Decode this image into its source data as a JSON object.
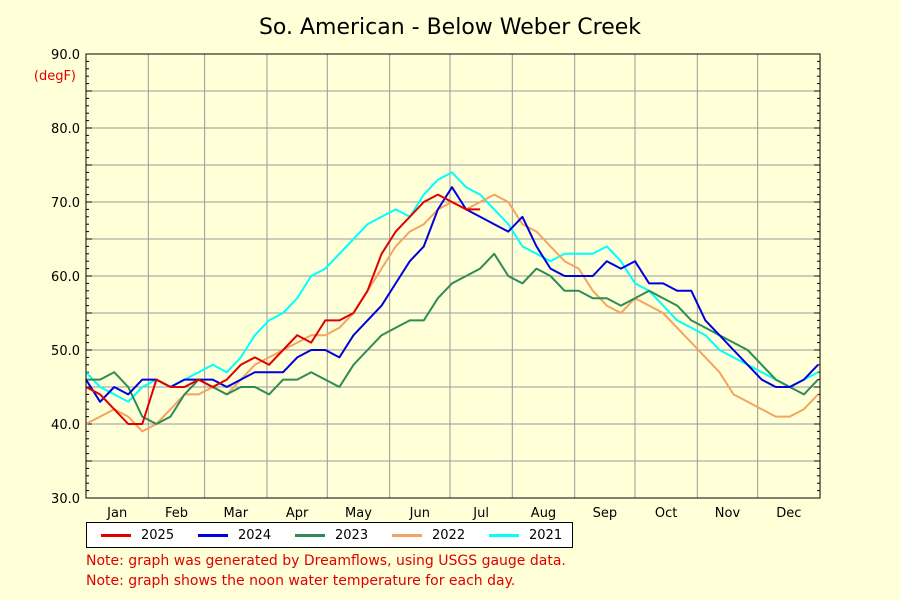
{
  "chart_data": {
    "type": "line",
    "title": "So. American - Below Weber Creek",
    "ylabel": "(degF)",
    "ylim": [
      30,
      90
    ],
    "yticks": [
      "90.0",
      "80.0",
      "70.0",
      "60.0",
      "50.0",
      "40.0",
      "30.0"
    ],
    "ytick_values": [
      90,
      80,
      70,
      60,
      50,
      40,
      30
    ],
    "x_range_days": [
      1,
      366
    ],
    "months": [
      "Jan",
      "Feb",
      "Mar",
      "Apr",
      "May",
      "Jun",
      "Jul",
      "Aug",
      "Sep",
      "Oct",
      "Nov",
      "Dec"
    ],
    "grid": true,
    "legend_position": "bottom",
    "series": [
      {
        "name": "2025",
        "color": "#e00000",
        "days": [
          1,
          8,
          15,
          22,
          29,
          36,
          43,
          50,
          57,
          64,
          71,
          78,
          85,
          92,
          99,
          106,
          113,
          120,
          127,
          134,
          141,
          148,
          155,
          162,
          169,
          176,
          183,
          190,
          197
        ],
        "values": [
          45,
          44,
          42,
          40,
          40,
          46,
          45,
          45,
          46,
          45,
          46,
          48,
          49,
          48,
          50,
          52,
          51,
          54,
          54,
          55,
          58,
          63,
          66,
          68,
          70,
          71,
          70,
          69,
          69
        ]
      },
      {
        "name": "2024",
        "color": "#0000e0",
        "days": [
          1,
          8,
          15,
          22,
          29,
          36,
          43,
          50,
          57,
          64,
          71,
          78,
          85,
          92,
          99,
          106,
          113,
          120,
          127,
          134,
          141,
          148,
          155,
          162,
          169,
          176,
          183,
          190,
          197,
          204,
          211,
          218,
          225,
          232,
          239,
          246,
          253,
          260,
          267,
          274,
          281,
          288,
          295,
          302,
          309,
          316,
          323,
          330,
          337,
          344,
          351,
          358,
          365
        ],
        "values": [
          46,
          43,
          45,
          44,
          46,
          46,
          45,
          46,
          46,
          46,
          45,
          46,
          47,
          47,
          47,
          49,
          50,
          50,
          49,
          52,
          54,
          56,
          59,
          62,
          64,
          69,
          72,
          69,
          68,
          67,
          66,
          68,
          64,
          61,
          60,
          60,
          60,
          62,
          61,
          62,
          59,
          59,
          58,
          58,
          54,
          52,
          50,
          48,
          46,
          45,
          45,
          46,
          48
        ]
      },
      {
        "name": "2023",
        "color": "#2e8b57",
        "days": [
          1,
          8,
          15,
          22,
          29,
          36,
          43,
          50,
          57,
          64,
          71,
          78,
          85,
          92,
          99,
          106,
          113,
          120,
          127,
          134,
          141,
          148,
          155,
          162,
          169,
          176,
          183,
          190,
          197,
          204,
          211,
          218,
          225,
          232,
          239,
          246,
          253,
          260,
          267,
          274,
          281,
          288,
          295,
          302,
          309,
          316,
          323,
          330,
          337,
          344,
          351,
          358,
          365
        ],
        "values": [
          46,
          46,
          47,
          45,
          41,
          40,
          41,
          44,
          46,
          45,
          44,
          45,
          45,
          44,
          46,
          46,
          47,
          46,
          45,
          48,
          50,
          52,
          53,
          54,
          54,
          57,
          59,
          60,
          61,
          63,
          60,
          59,
          61,
          60,
          58,
          58,
          57,
          57,
          56,
          57,
          58,
          57,
          56,
          54,
          53,
          52,
          51,
          50,
          48,
          46,
          45,
          44,
          46
        ]
      },
      {
        "name": "2022",
        "color": "#f4a460",
        "days": [
          1,
          8,
          15,
          22,
          29,
          36,
          43,
          50,
          57,
          64,
          71,
          78,
          85,
          92,
          99,
          106,
          113,
          120,
          127,
          134,
          141,
          148,
          155,
          162,
          169,
          176,
          183,
          190,
          197,
          204,
          211,
          218,
          225,
          232,
          239,
          246,
          253,
          260,
          267,
          274,
          281,
          288,
          295,
          302,
          309,
          316,
          323,
          330,
          337,
          344,
          351,
          358,
          365
        ],
        "values": [
          40,
          41,
          42,
          41,
          39,
          40,
          42,
          44,
          44,
          45,
          44,
          46,
          48,
          49,
          50,
          51,
          52,
          52,
          53,
          55,
          58,
          61,
          64,
          66,
          67,
          69,
          70,
          69,
          70,
          71,
          70,
          67,
          66,
          64,
          62,
          61,
          58,
          56,
          55,
          57,
          56,
          55,
          53,
          51,
          49,
          47,
          44,
          43,
          42,
          41,
          41,
          42,
          44
        ]
      },
      {
        "name": "2021",
        "color": "#00ffff",
        "days": [
          1,
          8,
          15,
          22,
          29,
          36,
          43,
          50,
          57,
          64,
          71,
          78,
          85,
          92,
          99,
          106,
          113,
          120,
          127,
          134,
          141,
          148,
          155,
          162,
          169,
          176,
          183,
          190,
          197,
          204,
          211,
          218,
          225,
          232,
          239,
          246,
          253,
          260,
          267,
          274,
          281,
          288,
          295,
          302,
          309,
          316,
          323,
          330,
          337,
          344,
          351,
          358,
          365
        ],
        "values": [
          47,
          45,
          44,
          43,
          45,
          46,
          45,
          46,
          47,
          48,
          47,
          49,
          52,
          54,
          55,
          57,
          60,
          61,
          63,
          65,
          67,
          68,
          69,
          68,
          71,
          73,
          74,
          72,
          71,
          69,
          67,
          64,
          63,
          62,
          63,
          63,
          63,
          64,
          62,
          59,
          58,
          56,
          54,
          53,
          52,
          50,
          49,
          48,
          47,
          46,
          45,
          46,
          47
        ]
      }
    ]
  },
  "legend": [
    {
      "label": "2025",
      "color": "#e00000"
    },
    {
      "label": "2024",
      "color": "#0000e0"
    },
    {
      "label": "2023",
      "color": "#2e8b57"
    },
    {
      "label": "2022",
      "color": "#f4a460"
    },
    {
      "label": "2021",
      "color": "#00ffff"
    }
  ],
  "notes": {
    "line1": "Note: graph was generated by Dreamflows, using USGS gauge data.",
    "line2": "Note: graph shows the noon water temperature for each day."
  }
}
